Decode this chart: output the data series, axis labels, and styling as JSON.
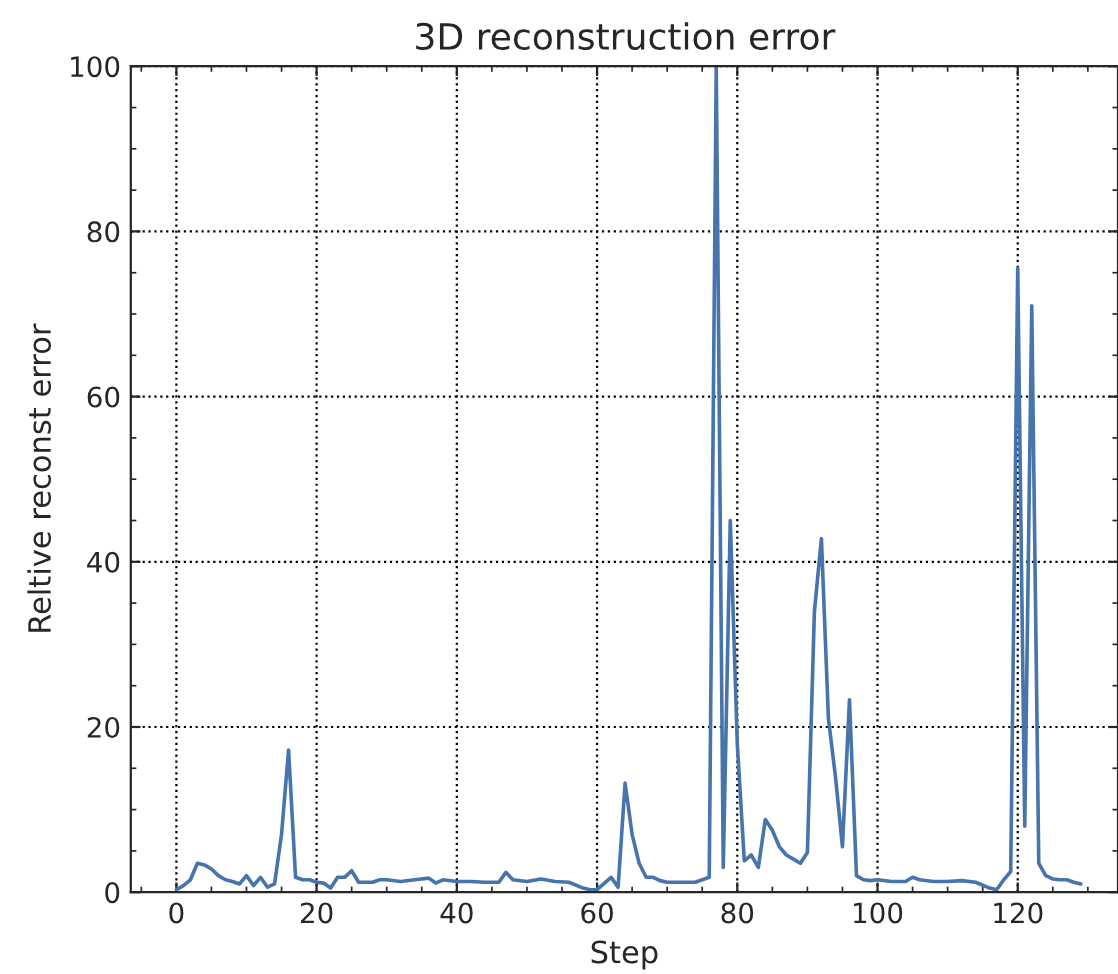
{
  "chart_data": {
    "type": "line",
    "title": "3D reconstruction error",
    "xlabel": "Step",
    "ylabel": "Reltive reconst error",
    "x": [
      0,
      1,
      2,
      3,
      4,
      5,
      6,
      7,
      8,
      9,
      10,
      11,
      12,
      13,
      14,
      15,
      16,
      17,
      18,
      19,
      20,
      21,
      22,
      23,
      24,
      25,
      26,
      27,
      28,
      29,
      30,
      32,
      34,
      36,
      37,
      38,
      40,
      42,
      44,
      46,
      47,
      48,
      50,
      52,
      54,
      56,
      58,
      59,
      60,
      62,
      63,
      64,
      65,
      66,
      67,
      68,
      69,
      70,
      72,
      74,
      75,
      76,
      77,
      78,
      79,
      80,
      81,
      82,
      83,
      84,
      85,
      86,
      87,
      88,
      89,
      90,
      91,
      92,
      93,
      94,
      95,
      96,
      97,
      98,
      99,
      100,
      102,
      104,
      105,
      106,
      108,
      110,
      112,
      114,
      116,
      117,
      118,
      119,
      120,
      121,
      122,
      123,
      124,
      125,
      126,
      127,
      128,
      129
    ],
    "series": [
      {
        "color": "#4674ab",
        "values": [
          0.3,
          0.8,
          1.5,
          3.5,
          3.3,
          2.8,
          2.0,
          1.5,
          1.3,
          1.0,
          2.0,
          0.8,
          1.8,
          0.6,
          1.0,
          7,
          17.2,
          1.8,
          1.5,
          1.5,
          1.2,
          1.1,
          0.5,
          1.8,
          1.8,
          2.6,
          1.2,
          1.2,
          1.2,
          1.5,
          1.5,
          1.3,
          1.5,
          1.7,
          1.1,
          1.5,
          1.3,
          1.3,
          1.2,
          1.2,
          2.4,
          1.5,
          1.3,
          1.6,
          1.3,
          1.2,
          0.5,
          0.3,
          0.3,
          1.8,
          0.6,
          13.2,
          7,
          3.5,
          1.8,
          1.8,
          1.4,
          1.2,
          1.2,
          1.2,
          1.5,
          1.8,
          100,
          3,
          45,
          18,
          3.8,
          4.5,
          3,
          8.8,
          7.5,
          5.5,
          4.5,
          4,
          3.5,
          4.8,
          34,
          42.8,
          21,
          14,
          5.5,
          23.3,
          2,
          1.5,
          1.4,
          1.5,
          1.3,
          1.3,
          1.8,
          1.5,
          1.3,
          1.3,
          1.4,
          1.2,
          0.5,
          0.3,
          1.5,
          2.5,
          75.5,
          8,
          71,
          3.5,
          2,
          1.6,
          1.5,
          1.5,
          1.2,
          1.0
        ]
      }
    ],
    "xlim": [
      -6.5,
      134.3
    ],
    "ylim": [
      0,
      100
    ],
    "xticks": [
      0,
      20,
      40,
      60,
      80,
      100,
      120
    ],
    "yticks": [
      0,
      20,
      40,
      60,
      80,
      100
    ],
    "grid": true,
    "marker": "none",
    "line_style": "solid"
  }
}
